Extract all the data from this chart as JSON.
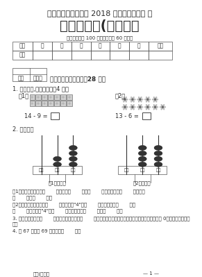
{
  "title1": "云南省昆明市五华区 2018 年春期中模拟试 题",
  "title2": "一年级数学(人教版）",
  "subtitle": "（本试题满分 100 分，考试时间 60 分钟）",
  "table_header": [
    "题号",
    "一",
    "二",
    "三",
    "四",
    "五",
    "六",
    "总分"
  ],
  "table_row": [
    "得分",
    "",
    "",
    "",
    "",
    "",
    "",
    ""
  ],
  "section_label": "得分",
  "section_reviewer": "评卷人",
  "section_title": "一、我是填空小专家（28 分）",
  "q1_title": "1. 先圈一圈,再算一算。（4 分）",
  "q1_1": "（1）",
  "q1_2": "（2）",
  "q1_eq1": "14 - 9 =",
  "q1_eq2": "13 - 6 =",
  "q2_title": "2. 表会填。",
  "abacus1_label": "（1）小题图",
  "abacus2_label": "（2）小题图",
  "abacus_cols": [
    "百位",
    "十位",
    "个位"
  ],
  "q2_1": "（1）如图，个位上是（       ），表示（       ）个（       ），十位上是（       ），表示",
  "q2_1b": "（       ）个（       ）。",
  "q2_2": "（2）如图，这个数写作（       ），左边的\"4\"在（       ）位上，表示（       ）个",
  "q2_2b": "（       ），右边的\"4\"在（       ）位上，表示（       ）个（       ）。",
  "q3": "3. 最小的两位数是（       ），最小的三位数是（       ），一个两位数，十位上是最大的一位数，个位上是 0，这个两位数是（       ）。",
  "q4": "4. 比 67 大，比 69 小的数是（       ）。",
  "footer_left": "一数(人教）",
  "footer_right": "— 1 —",
  "bg_color": "#ffffff",
  "text_color": "#2a2a2a",
  "border_color": "#888888",
  "title2_fontsize": 14,
  "title1_fontsize": 8,
  "body_fontsize": 6
}
